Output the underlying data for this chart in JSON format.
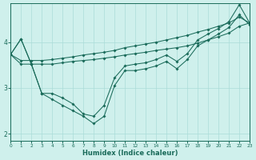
{
  "xlabel": "Humidex (Indice chaleur)",
  "background_color": "#cff0ec",
  "line_color": "#1a6b5a",
  "grid_color": "#aadcd8",
  "xlim": [
    0,
    23
  ],
  "ylim": [
    1.85,
    4.85
  ],
  "xticks": [
    0,
    1,
    2,
    3,
    4,
    5,
    6,
    7,
    8,
    9,
    10,
    11,
    12,
    13,
    14,
    15,
    16,
    17,
    18,
    19,
    20,
    21,
    22,
    23
  ],
  "yticks": [
    2,
    3,
    4
  ],
  "series": [
    {
      "x": [
        0,
        1,
        2,
        3,
        4,
        5,
        6,
        7,
        8,
        9,
        10,
        11,
        12,
        13,
        14,
        15,
        16,
        17,
        18,
        19,
        20,
        21,
        22,
        23
      ],
      "y": [
        3.73,
        4.07,
        3.52,
        2.88,
        2.88,
        2.78,
        2.65,
        2.43,
        2.38,
        2.62,
        3.22,
        3.48,
        3.52,
        3.55,
        3.62,
        3.72,
        3.58,
        3.75,
        4.05,
        4.18,
        4.3,
        4.45,
        4.82,
        4.42
      ]
    },
    {
      "x": [
        0,
        1,
        2,
        3,
        4,
        5,
        6,
        7,
        8,
        9,
        10,
        11,
        12,
        13,
        14,
        15,
        16,
        17,
        18,
        19,
        20,
        21,
        22,
        23
      ],
      "y": [
        3.73,
        3.52,
        3.52,
        3.52,
        3.52,
        3.55,
        3.58,
        3.6,
        3.62,
        3.65,
        3.68,
        3.72,
        3.75,
        3.78,
        3.82,
        3.85,
        3.88,
        3.92,
        3.98,
        4.05,
        4.12,
        4.2,
        4.35,
        4.42
      ]
    },
    {
      "x": [
        0,
        1,
        2,
        3,
        4,
        5,
        6,
        7,
        8,
        9,
        10,
        11,
        12,
        13,
        14,
        15,
        16,
        17,
        18,
        19,
        20,
        21,
        22,
        23
      ],
      "y": [
        3.73,
        3.6,
        3.6,
        3.6,
        3.62,
        3.65,
        3.68,
        3.72,
        3.75,
        3.78,
        3.82,
        3.88,
        3.92,
        3.96,
        4.0,
        4.05,
        4.1,
        4.15,
        4.22,
        4.28,
        4.35,
        4.42,
        4.55,
        4.42
      ]
    },
    {
      "x": [
        0,
        1,
        2,
        3,
        4,
        5,
        6,
        7,
        8,
        9,
        10,
        11,
        12,
        13,
        14,
        15,
        16,
        17,
        18,
        19,
        20,
        21,
        22,
        23
      ],
      "y": [
        3.73,
        4.07,
        3.52,
        2.88,
        2.75,
        2.62,
        2.5,
        2.38,
        2.22,
        2.38,
        3.05,
        3.38,
        3.38,
        3.42,
        3.48,
        3.58,
        3.42,
        3.62,
        3.92,
        4.05,
        4.18,
        4.32,
        4.6,
        4.38
      ]
    }
  ]
}
